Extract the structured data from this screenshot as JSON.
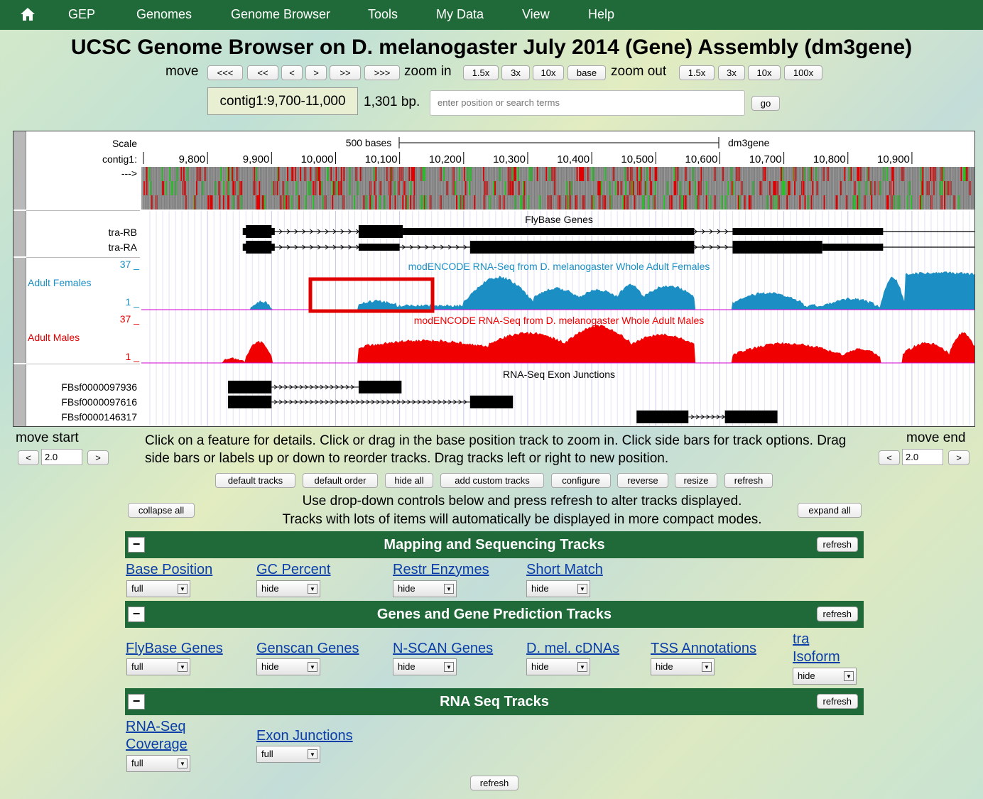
{
  "nav": {
    "items": [
      "GEP",
      "Genomes",
      "Genome Browser",
      "Tools",
      "My Data",
      "View",
      "Help"
    ]
  },
  "title": "UCSC Genome Browser on D. melanogaster July 2014 (Gene) Assembly (dm3gene)",
  "controls": {
    "move_label": "move",
    "move_buttons": [
      "<<<",
      "<<",
      "<",
      ">",
      ">>",
      ">>>"
    ],
    "zoom_in_label": "zoom in",
    "zoom_in_buttons": [
      "1.5x",
      "3x",
      "10x",
      "base"
    ],
    "zoom_out_label": "zoom out",
    "zoom_out_buttons": [
      "1.5x",
      "3x",
      "10x",
      "100x"
    ],
    "position": "contig1:9,700-11,000",
    "size": "1,301 bp.",
    "search_placeholder": "enter position or search terms",
    "go": "go"
  },
  "tracks_image": {
    "scale_label": "Scale",
    "contig_label": "contig1:",
    "arrow_label": "--->",
    "scale_bar_label": "500 bases",
    "assembly_label": "dm3gene",
    "ticks": [
      "9,800",
      "9,900",
      "10,000",
      "10,100",
      "10,200",
      "10,300",
      "10,400",
      "10,500",
      "10,600",
      "10,700",
      "10,800",
      "10,900"
    ],
    "flybase_title": "FlyBase Genes",
    "genes": [
      "tra-RB",
      "tra-RA"
    ],
    "females": {
      "max": "37 _",
      "min": "1 _",
      "label": "Adult Females",
      "title": "modENCODE RNA-Seq from D. melanogaster Whole Adult Females",
      "color": "#1b8fc3"
    },
    "males": {
      "max": "37 _",
      "min": "1 _",
      "label": "Adult Males",
      "title": "modENCODE RNA-Seq from D. melanogaster Whole Adult Males",
      "color": "#f00000"
    },
    "junction_title": "RNA-Seq Exon Junctions",
    "junctions": [
      "FBsf0000097936",
      "FBsf0000097616",
      "FBsf0000146317"
    ]
  },
  "move_start": {
    "label": "move start",
    "left": "<",
    "value": "2.0",
    "right": ">"
  },
  "move_end": {
    "label": "move end",
    "left": "<",
    "value": "2.0",
    "right": ">"
  },
  "instructions": "Click on a feature for details. Click or drag in the base position track to zoom in. Click side bars for track options. Drag side bars or labels up or down to reorder tracks. Drag tracks left or right to new position.",
  "actions": [
    "default tracks",
    "default order",
    "hide all",
    "add custom tracks",
    "configure",
    "reverse",
    "resize",
    "refresh"
  ],
  "collapse_all": "collapse all",
  "expand_all": "expand all",
  "help_line1": "Use drop-down controls below and press refresh to alter tracks displayed.",
  "help_line2": "Tracks with lots of items will automatically be displayed in more compact modes.",
  "groups": [
    {
      "title": "Mapping and Sequencing Tracks",
      "collapse": "−",
      "refresh": "refresh",
      "tracks": [
        {
          "name": "Base Position",
          "mode": "full"
        },
        {
          "name": "GC Percent",
          "mode": "hide"
        },
        {
          "name": "Restr Enzymes",
          "mode": "hide"
        },
        {
          "name": "Short Match",
          "mode": "hide"
        }
      ]
    },
    {
      "title": "Genes and Gene Prediction Tracks",
      "collapse": "−",
      "refresh": "refresh",
      "tracks": [
        {
          "name": "FlyBase Genes",
          "mode": "full"
        },
        {
          "name": "Genscan Genes",
          "mode": "hide"
        },
        {
          "name": "N-SCAN Genes",
          "mode": "hide"
        },
        {
          "name": "D. mel. cDNAs",
          "mode": "hide"
        },
        {
          "name": "TSS Annotations",
          "mode": "hide"
        },
        {
          "name1": "tra",
          "name2": "Isoform",
          "mode": "hide"
        }
      ]
    },
    {
      "title": "RNA Seq Tracks",
      "collapse": "−",
      "refresh": "refresh",
      "tracks": [
        {
          "name1": "RNA-Seq",
          "name2": "Coverage",
          "mode": "full"
        },
        {
          "name": "Exon Junctions",
          "mode": "full"
        }
      ]
    }
  ],
  "bottom_refresh": "refresh"
}
